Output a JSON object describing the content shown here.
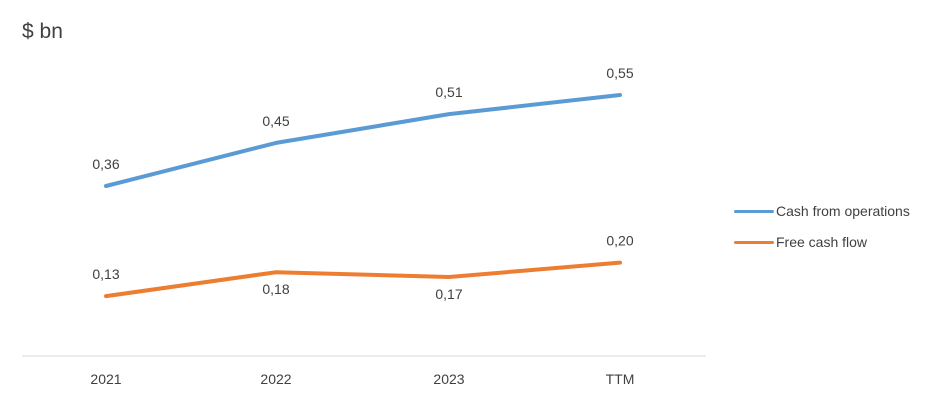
{
  "chart_data": {
    "type": "line",
    "ylabel": "$ bn",
    "categories": [
      "2021",
      "2022",
      "2023",
      "TTM"
    ],
    "series": [
      {
        "name": "Cash from operations",
        "color": "#5B9BD5",
        "values": [
          0.36,
          0.45,
          0.51,
          0.55
        ],
        "labels": [
          "0,36",
          "0,45",
          "0,51",
          "0,55"
        ],
        "label_position": "above"
      },
      {
        "name": "Free cash flow",
        "color": "#ED7D31",
        "values": [
          0.13,
          0.18,
          0.17,
          0.2
        ],
        "labels": [
          "0,13",
          "0,18",
          "0,17",
          "0,20"
        ],
        "label_position": [
          "above",
          "below",
          "below",
          "above"
        ]
      }
    ],
    "ylim": [
      0,
      0.7
    ],
    "grid": false,
    "legend": "right"
  }
}
